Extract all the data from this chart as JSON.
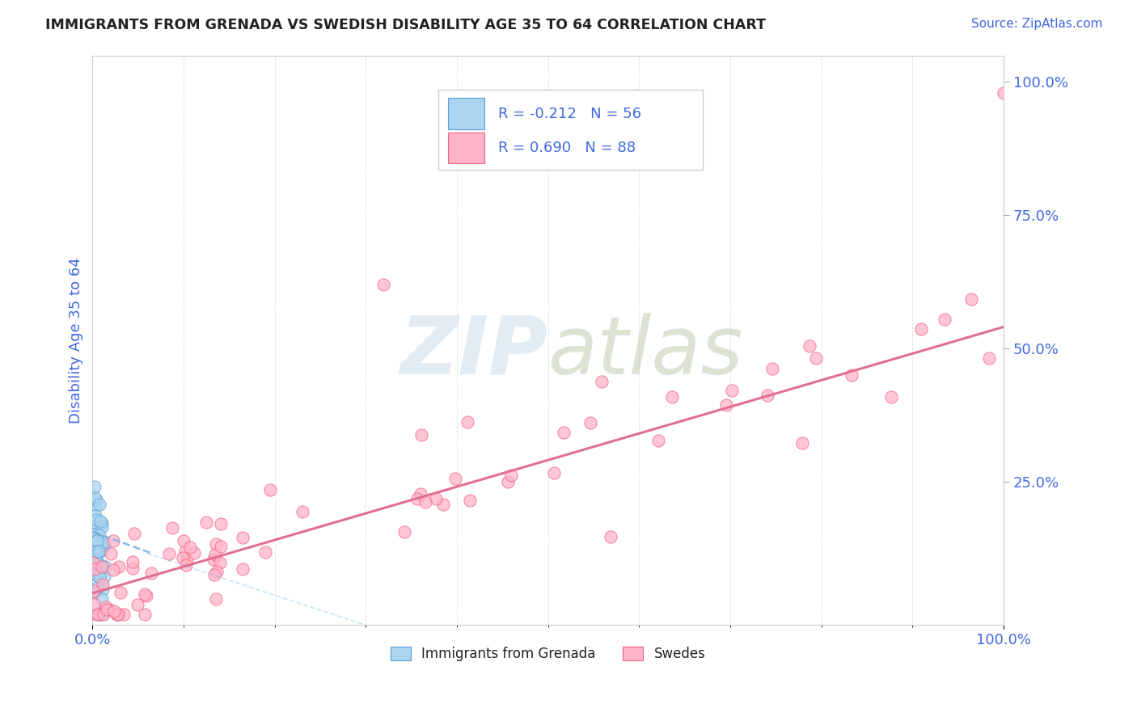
{
  "title": "IMMIGRANTS FROM GRENADA VS SWEDISH DISABILITY AGE 35 TO 64 CORRELATION CHART",
  "source": "Source: ZipAtlas.com",
  "ylabel": "Disability Age 35 to 64",
  "xlim": [
    0.0,
    1.0
  ],
  "ylim": [
    -0.02,
    1.05
  ],
  "xtick_positions": [
    0.0,
    1.0
  ],
  "xtick_labels": [
    "0.0%",
    "100.0%"
  ],
  "ytick_positions": [
    0.25,
    0.5,
    0.75,
    1.0
  ],
  "ytick_labels": [
    "25.0%",
    "50.0%",
    "75.0%",
    "100.0%"
  ],
  "legend_line1": "R = -0.212   N = 56",
  "legend_line2": "R = 0.690   N = 88",
  "color_blue_fill": "#aad4f0",
  "color_blue_edge": "#5b9fd4",
  "color_pink_fill": "#ffb3c8",
  "color_pink_edge": "#f06080",
  "color_blue_line": "#7ab5e0",
  "color_pink_line": "#e07090",
  "background_color": "#ffffff",
  "grid_color": "#d0d0d0",
  "tick_label_color": "#4169e1",
  "title_color": "#222222",
  "source_color": "#4169e1",
  "watermark_color": "#d8e8f0",
  "pink_line_x0": 0.0,
  "pink_line_y0": 0.04,
  "pink_line_x1": 1.0,
  "pink_line_y1": 0.54,
  "blue_line_x0": 0.0,
  "blue_line_y0": 0.155,
  "blue_line_x1": 0.065,
  "blue_line_y1": 0.115
}
